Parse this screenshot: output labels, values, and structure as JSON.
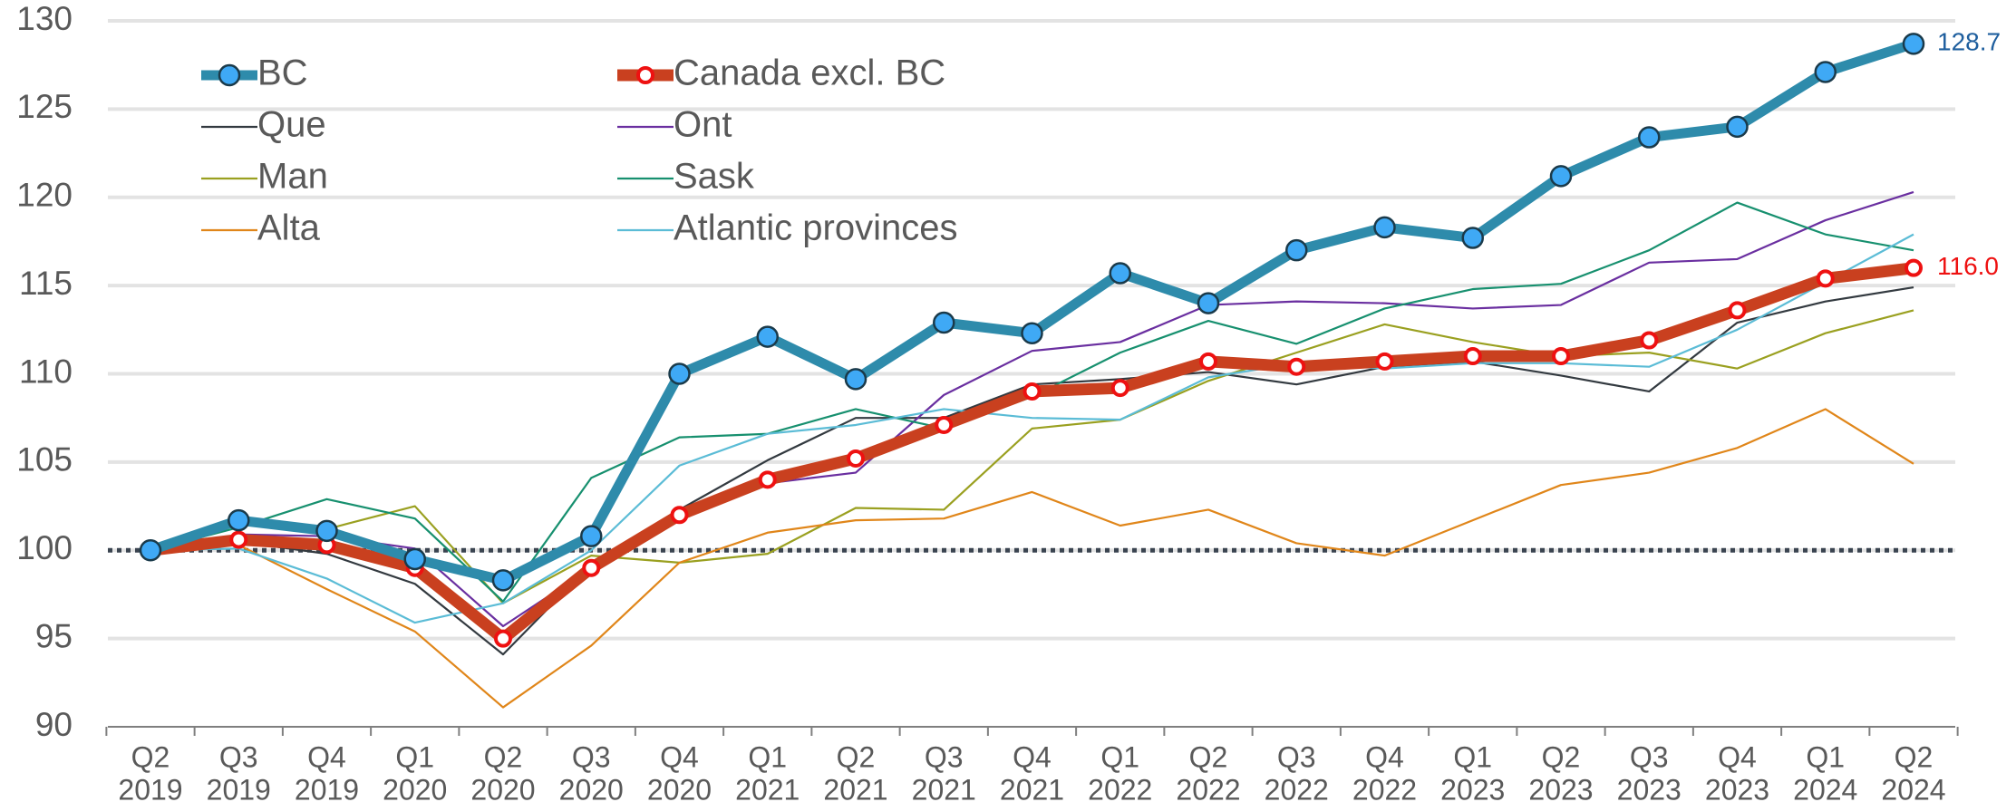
{
  "chart_data": {
    "type": "line",
    "categories": [
      [
        "Q2",
        "2019"
      ],
      [
        "Q3",
        "2019"
      ],
      [
        "Q4",
        "2019"
      ],
      [
        "Q1",
        "2020"
      ],
      [
        "Q2",
        "2020"
      ],
      [
        "Q3",
        "2020"
      ],
      [
        "Q4",
        "2020"
      ],
      [
        "Q1",
        "2021"
      ],
      [
        "Q2",
        "2021"
      ],
      [
        "Q3",
        "2021"
      ],
      [
        "Q4",
        "2021"
      ],
      [
        "Q1",
        "2022"
      ],
      [
        "Q2",
        "2022"
      ],
      [
        "Q3",
        "2022"
      ],
      [
        "Q4",
        "2022"
      ],
      [
        "Q1",
        "2023"
      ],
      [
        "Q2",
        "2023"
      ],
      [
        "Q3",
        "2023"
      ],
      [
        "Q4",
        "2023"
      ],
      [
        "Q1",
        "2024"
      ],
      [
        "Q2",
        "2024"
      ]
    ],
    "ylim": [
      90,
      130
    ],
    "yticks": [
      90,
      95,
      100,
      105,
      110,
      115,
      120,
      125,
      130
    ],
    "grid": true,
    "reference_line": 100,
    "series": [
      {
        "name": "BC",
        "color": "#2e8bab",
        "marker_color": "#3fa9f5",
        "marker": "filled",
        "width": 11,
        "values": [
          100,
          101.7,
          101.1,
          99.5,
          98.3,
          100.8,
          110,
          112.1,
          109.7,
          112.9,
          112.3,
          115.7,
          114,
          117,
          118.3,
          117.7,
          121.2,
          123.4,
          124,
          127.1,
          128.7
        ],
        "end_label": "128.7",
        "end_label_color": "#1f5f9e"
      },
      {
        "name": "Canada excl. BC",
        "color": "#c9401f",
        "marker_color": "#ffffff",
        "marker": "open",
        "width": 13,
        "values": [
          100,
          100.6,
          100.3,
          99,
          95,
          99,
          102,
          104,
          105.2,
          107.1,
          109,
          109.2,
          110.7,
          110.4,
          110.7,
          111,
          111,
          111.9,
          113.6,
          115.4,
          116.0
        ],
        "end_label": "116.0",
        "end_label_color": "#ee1111"
      },
      {
        "name": "Que",
        "color": "#333a40",
        "width": 2.2,
        "values": [
          100,
          100.5,
          99.8,
          98.1,
          94.1,
          99.2,
          102.3,
          105.1,
          107.5,
          107.5,
          109.4,
          109.7,
          110.1,
          109.4,
          110.4,
          110.7,
          109.9,
          109,
          112.9,
          114.1,
          114.9
        ]
      },
      {
        "name": "Ont",
        "color": "#6a2fa0",
        "width": 2.2,
        "values": [
          99.8,
          100.9,
          100.8,
          100.1,
          95.7,
          99,
          101.9,
          103.8,
          104.4,
          108.8,
          111.3,
          111.8,
          113.9,
          114.1,
          114,
          113.7,
          113.9,
          116.3,
          116.5,
          118.7,
          120.3
        ]
      },
      {
        "name": "Man",
        "color": "#9aa020",
        "width": 2.2,
        "values": [
          100,
          101.9,
          101.2,
          102.5,
          97,
          99.7,
          99.3,
          99.8,
          102.4,
          102.3,
          106.9,
          107.4,
          109.6,
          111.2,
          112.8,
          111.8,
          111,
          111.2,
          110.3,
          112.3,
          113.6
        ]
      },
      {
        "name": "Sask",
        "color": "#17906f",
        "width": 2.2,
        "values": [
          100,
          101.3,
          102.9,
          101.8,
          97.1,
          104.1,
          106.4,
          106.6,
          108,
          106.9,
          108.7,
          111.2,
          113,
          111.7,
          113.7,
          114.8,
          115.1,
          117,
          119.7,
          117.9,
          117
        ]
      },
      {
        "name": "Alta",
        "color": "#e0861a",
        "width": 2.2,
        "values": [
          100,
          100.3,
          97.8,
          95.4,
          91.1,
          94.6,
          99.3,
          101,
          101.7,
          101.8,
          103.3,
          101.4,
          102.3,
          100.4,
          99.7,
          101.7,
          103.7,
          104.4,
          105.8,
          108,
          104.9
        ]
      },
      {
        "name": "Atlantic provinces",
        "color": "#5bbcd6",
        "width": 2.2,
        "values": [
          100,
          100.1,
          98.4,
          95.9,
          97,
          100,
          104.8,
          106.6,
          107.1,
          108,
          107.5,
          107.4,
          109.8,
          110.6,
          110.3,
          110.6,
          110.6,
          110.4,
          112.5,
          115.2,
          117.9
        ]
      }
    ]
  }
}
